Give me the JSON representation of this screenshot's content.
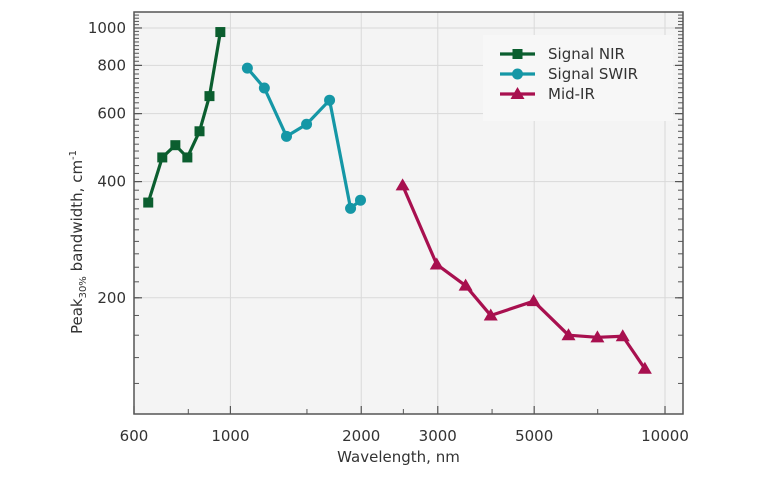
{
  "chart_data": {
    "type": "line",
    "title": "",
    "xlabel": "Wavelength, nm",
    "ylabel": {
      "main": "Peak",
      "subscript": "30%",
      "rest": " bandwidth, cm",
      "superscript": "-1"
    },
    "xscale": "log",
    "yscale": "log",
    "xlim": [
      600,
      11000
    ],
    "ylim": [
      100,
      1100
    ],
    "xticks": [
      600,
      1000,
      2000,
      3000,
      5000,
      10000
    ],
    "xtick_labels": [
      "600",
      "1000",
      "2000",
      "3000",
      "5000",
      "10000"
    ],
    "yticks": [
      200,
      400,
      600,
      800,
      1000
    ],
    "ytick_labels": [
      "200",
      "400",
      "600",
      "800",
      "1000"
    ],
    "grid": true,
    "legend_position": "upper right",
    "series": [
      {
        "name": "Signal NIR",
        "color": "#0b5e2f",
        "marker": "square",
        "x": [
          647,
          697,
          747,
          796,
          849,
          895,
          948
        ],
        "y": [
          353,
          462,
          497,
          462,
          540,
          666,
          976
        ]
      },
      {
        "name": "Signal SWIR",
        "color": "#1597a6",
        "marker": "circle",
        "x": [
          1094,
          1197,
          1346,
          1497,
          1691,
          1890,
          1992
        ],
        "y": [
          787,
          699,
          524,
          563,
          650,
          341,
          358
        ]
      },
      {
        "name": "Mid-IR",
        "color": "#a8104f",
        "marker": "triangle",
        "x": [
          2490,
          2984,
          3477,
          3972,
          4985,
          5997,
          6990,
          7993,
          8988
        ],
        "y": [
          391,
          244,
          215,
          180,
          196,
          160,
          158,
          159,
          131
        ]
      }
    ]
  },
  "colors": {
    "plot_bg": "#f4f4f4",
    "grid": "#d9d9d9",
    "axis": "#555555"
  }
}
